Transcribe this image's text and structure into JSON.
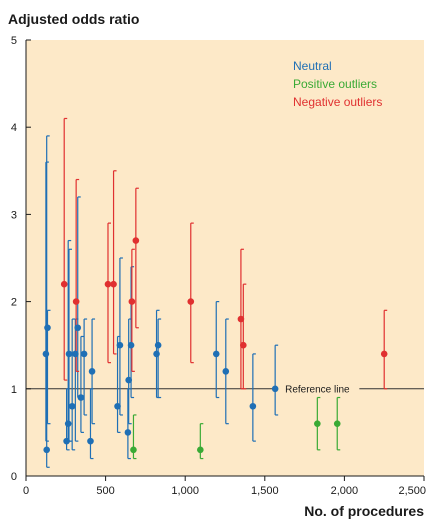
{
  "chart_data": {
    "type": "scatter",
    "title": "",
    "ylabel": "Adjusted odds ratio",
    "xlabel": "No. of procedures",
    "xlim": [
      0,
      2500
    ],
    "ylim": [
      0,
      5
    ],
    "x_ticks": [
      0,
      500,
      1000,
      1500,
      2000,
      2500
    ],
    "x_tick_labels": [
      "0",
      "500",
      "1,000",
      "1,500",
      "2,000",
      "2,500"
    ],
    "y_ticks": [
      0,
      1,
      2,
      3,
      4,
      5
    ],
    "y_tick_labels": [
      "0",
      "1",
      "2",
      "3",
      "4",
      "5"
    ],
    "reference": {
      "y": 1,
      "label": "Reference line"
    },
    "background_color": "#fde9c8",
    "legend_position": "top-right",
    "series": [
      {
        "name": "Neutral",
        "color": "#1f6fb5",
        "points": [
          {
            "x": 125,
            "y": 1.4,
            "lo": 0.4,
            "hi": 3.6
          },
          {
            "x": 130,
            "y": 0.3,
            "lo": 0.1,
            "hi": 3.9
          },
          {
            "x": 135,
            "y": 1.7,
            "lo": 0.6,
            "hi": 1.9
          },
          {
            "x": 255,
            "y": 0.4,
            "lo": 0.3,
            "hi": 1.0
          },
          {
            "x": 265,
            "y": 0.6,
            "lo": 0.4,
            "hi": 2.7
          },
          {
            "x": 270,
            "y": 1.4,
            "lo": 0.4,
            "hi": 2.6
          },
          {
            "x": 290,
            "y": 0.8,
            "lo": 0.3,
            "hi": 1.8
          },
          {
            "x": 310,
            "y": 1.4,
            "lo": 0.4,
            "hi": 1.8
          },
          {
            "x": 325,
            "y": 1.7,
            "lo": 0.9,
            "hi": 3.2
          },
          {
            "x": 345,
            "y": 0.9,
            "lo": 0.5,
            "hi": 1.6
          },
          {
            "x": 365,
            "y": 1.4,
            "lo": 0.7,
            "hi": 1.8
          },
          {
            "x": 405,
            "y": 0.4,
            "lo": 0.2,
            "hi": 1.0
          },
          {
            "x": 415,
            "y": 1.2,
            "lo": 0.6,
            "hi": 1.8
          },
          {
            "x": 575,
            "y": 0.8,
            "lo": 0.5,
            "hi": 1.6
          },
          {
            "x": 590,
            "y": 1.5,
            "lo": 0.7,
            "hi": 2.5
          },
          {
            "x": 640,
            "y": 0.5,
            "lo": 0.2,
            "hi": 1.0
          },
          {
            "x": 645,
            "y": 1.1,
            "lo": 0.6,
            "hi": 1.8
          },
          {
            "x": 660,
            "y": 1.5,
            "lo": 0.9,
            "hi": 2.4
          },
          {
            "x": 820,
            "y": 1.4,
            "lo": 0.9,
            "hi": 1.9
          },
          {
            "x": 830,
            "y": 1.5,
            "lo": 0.9,
            "hi": 1.8
          },
          {
            "x": 1195,
            "y": 1.4,
            "lo": 0.9,
            "hi": 2.0
          },
          {
            "x": 1255,
            "y": 1.2,
            "lo": 0.6,
            "hi": 1.8
          },
          {
            "x": 1425,
            "y": 0.8,
            "lo": 0.4,
            "hi": 1.4
          },
          {
            "x": 1565,
            "y": 1.0,
            "lo": 0.7,
            "hi": 1.5
          }
        ]
      },
      {
        "name": "Positive outliers",
        "color": "#3aaa35",
        "points": [
          {
            "x": 675,
            "y": 0.3,
            "lo": 0.2,
            "hi": 0.7
          },
          {
            "x": 1095,
            "y": 0.3,
            "lo": 0.2,
            "hi": 0.6
          },
          {
            "x": 1830,
            "y": 0.6,
            "lo": 0.3,
            "hi": 0.9
          },
          {
            "x": 1955,
            "y": 0.6,
            "lo": 0.3,
            "hi": 0.9
          }
        ]
      },
      {
        "name": "Negative outliers",
        "color": "#e03030",
        "points": [
          {
            "x": 240,
            "y": 2.2,
            "lo": 1.1,
            "hi": 4.1
          },
          {
            "x": 315,
            "y": 2.0,
            "lo": 1.2,
            "hi": 3.4
          },
          {
            "x": 515,
            "y": 2.2,
            "lo": 1.3,
            "hi": 2.9
          },
          {
            "x": 550,
            "y": 2.2,
            "lo": 1.4,
            "hi": 3.5
          },
          {
            "x": 665,
            "y": 2.0,
            "lo": 1.2,
            "hi": 2.6
          },
          {
            "x": 690,
            "y": 2.7,
            "lo": 1.7,
            "hi": 3.3
          },
          {
            "x": 1035,
            "y": 2.0,
            "lo": 1.3,
            "hi": 2.9
          },
          {
            "x": 1350,
            "y": 1.8,
            "lo": 1.0,
            "hi": 2.6
          },
          {
            "x": 1365,
            "y": 1.5,
            "lo": 1.0,
            "hi": 2.2
          },
          {
            "x": 2250,
            "y": 1.4,
            "lo": 1.0,
            "hi": 1.9
          }
        ]
      }
    ]
  }
}
